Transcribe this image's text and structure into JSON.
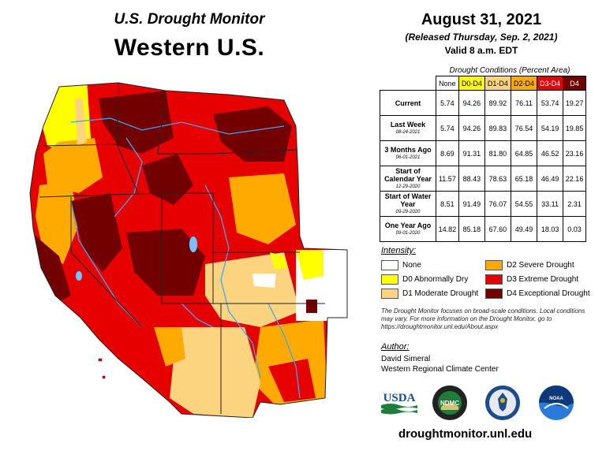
{
  "header": {
    "program": "U.S. Drought Monitor",
    "region": "Western U.S.",
    "date": "August 31, 2021",
    "released": "(Released Thursday, Sep. 2, 2021)",
    "valid": "Valid 8 a.m. EDT"
  },
  "table": {
    "caption": "Drought Conditions (Percent Area)",
    "columns": [
      "None",
      "D0-D4",
      "D1-D4",
      "D2-D4",
      "D3-D4",
      "D4"
    ],
    "column_colors": [
      "#ffffff",
      "#ffff00",
      "#fcd37f",
      "#ffaa00",
      "#e60000",
      "#730000"
    ],
    "column_text_colors": [
      "#000000",
      "#000000",
      "#000000",
      "#000000",
      "#ffffff",
      "#ffffff"
    ],
    "rows": [
      {
        "label": "Current",
        "date": "",
        "values": [
          "5.74",
          "94.26",
          "89.92",
          "76.11",
          "53.74",
          "19.27"
        ]
      },
      {
        "label": "Last Week",
        "date": "08-24-2021",
        "values": [
          "5.74",
          "94.26",
          "89.83",
          "76.54",
          "54.19",
          "19.85"
        ]
      },
      {
        "label": "3 Months Ago",
        "date": "06-01-2021",
        "values": [
          "8.69",
          "91.31",
          "81.80",
          "64.85",
          "46.52",
          "23.16"
        ]
      },
      {
        "label": "Start of Calendar Year",
        "date": "12-29-2020",
        "values": [
          "11.57",
          "88.43",
          "78.63",
          "65.18",
          "46.49",
          "22.16"
        ]
      },
      {
        "label": "Start of Water Year",
        "date": "09-29-2020",
        "values": [
          "8.51",
          "91.49",
          "76.07",
          "54.55",
          "33.11",
          "2.31"
        ]
      },
      {
        "label": "One Year Ago",
        "date": "09-01-2020",
        "values": [
          "14.82",
          "85.18",
          "67.60",
          "49.49",
          "18.03",
          "0.03"
        ]
      }
    ]
  },
  "legend": {
    "title": "Intensity:",
    "items": [
      {
        "label": "None",
        "color": "#ffffff"
      },
      {
        "label": "D0 Abnormally Dry",
        "color": "#ffff00"
      },
      {
        "label": "D1 Moderate Drought",
        "color": "#fcd37f"
      },
      {
        "label": "D2 Severe Drought",
        "color": "#ffaa00"
      },
      {
        "label": "D3 Extreme Drought",
        "color": "#e60000"
      },
      {
        "label": "D4 Exceptional Drought",
        "color": "#730000"
      }
    ]
  },
  "note": "The Drought Monitor focuses on broad-scale conditions. Local conditions may vary. For more information on the Drought Monitor, go to https://droughtmonitor.unl.edu/About.aspx",
  "author": {
    "title": "Author:",
    "name": "David Simeral",
    "org": "Western Regional Climate Center"
  },
  "logos": {
    "usda": "USDA",
    "ndmc": "NDMC",
    "noaa": "NOAA"
  },
  "website": "droughtmonitor.unl.edu",
  "icons": [
    "usda-logo",
    "ndmc-logo",
    "commerce-seal",
    "noaa-logo"
  ]
}
